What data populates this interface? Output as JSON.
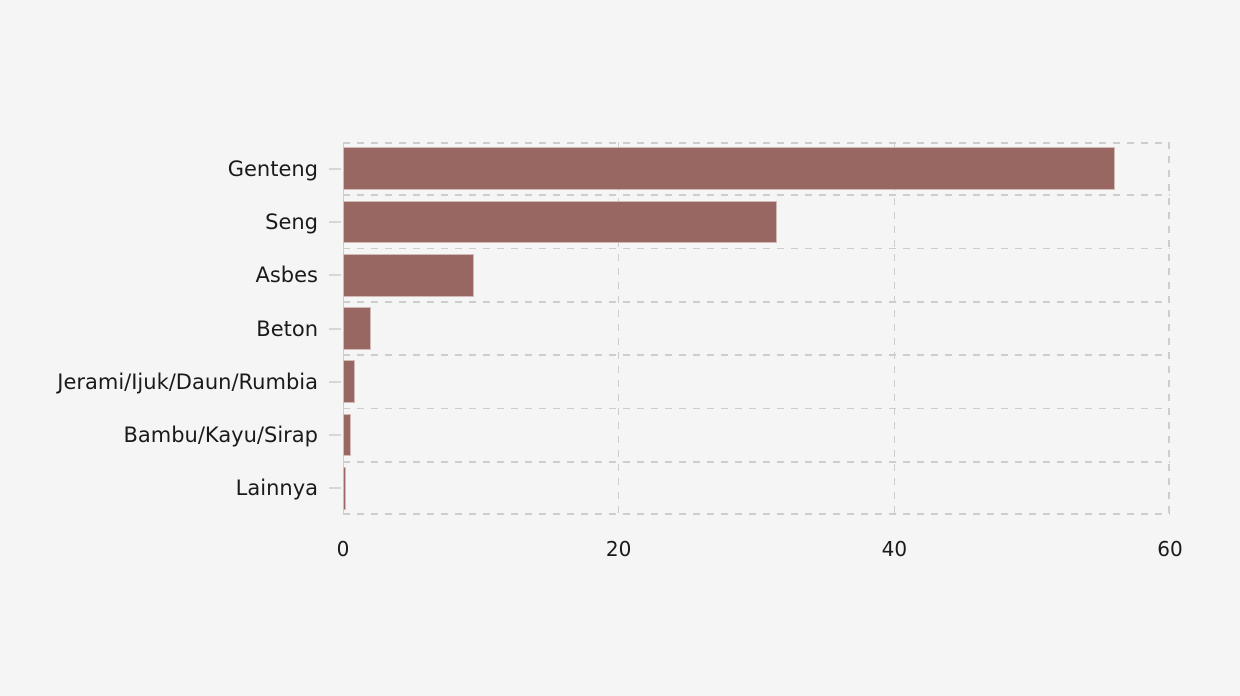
{
  "chart_data": {
    "type": "bar",
    "orientation": "horizontal",
    "title": "",
    "xlabel": "",
    "ylabel": "",
    "categories": [
      "Genteng",
      "Seng",
      "Asbes",
      "Beton",
      "Jerami/Ijuk/Daun/Rumbia",
      "Bambu/Kayu/Sirap",
      "Lainnya"
    ],
    "values": [
      56,
      31.5,
      9.5,
      2,
      0.9,
      0.6,
      0.2
    ],
    "xlim": [
      0,
      60
    ],
    "x_ticks": [
      "0",
      "20",
      "40",
      "60"
    ],
    "x_tick_values": [
      0,
      20,
      40,
      60
    ],
    "grid": "dashed",
    "legend": "none",
    "bar_color": "#996761",
    "bar_edge_color": "rgba(255,255,255,0.55)",
    "background_color": "#f5f5f5",
    "grid_color": "#cdcdcd",
    "tick_mark_color": "#d6d6d6",
    "text_color": "#1a1a1a"
  }
}
